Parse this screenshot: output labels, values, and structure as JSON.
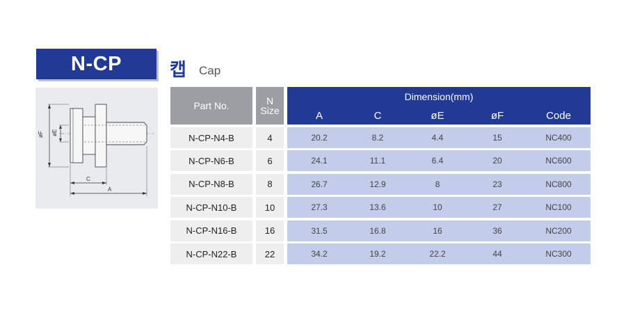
{
  "header": {
    "model": "N-CP",
    "korean_name": "캡",
    "english_name": "Cap"
  },
  "drawing": {
    "labels": {
      "f": "øF",
      "e": "øE",
      "c": "C",
      "a": "A"
    }
  },
  "table": {
    "part_header": "Part No.",
    "size_header_line1": "N",
    "size_header_line2": "Size",
    "dimension_header": "Dimension(mm)",
    "columns": [
      "A",
      "C",
      "øE",
      "øF",
      "Code"
    ],
    "rows": [
      {
        "part": "N-CP-N4-B",
        "size": "4",
        "a": "20.2",
        "c": "8.2",
        "e": "4.4",
        "f": "15",
        "code": "NC400"
      },
      {
        "part": "N-CP-N6-B",
        "size": "6",
        "a": "24.1",
        "c": "11.1",
        "e": "6.4",
        "f": "20",
        "code": "NC600"
      },
      {
        "part": "N-CP-N8-B",
        "size": "8",
        "a": "26.7",
        "c": "12.9",
        "e": "8",
        "f": "23",
        "code": "NC800"
      },
      {
        "part": "N-CP-N10-B",
        "size": "10",
        "a": "27.3",
        "c": "13.6",
        "e": "10",
        "f": "27",
        "code": "NC100"
      },
      {
        "part": "N-CP-N16-B",
        "size": "16",
        "a": "31.5",
        "c": "16.8",
        "e": "16",
        "f": "36",
        "code": "NC200"
      },
      {
        "part": "N-CP-N22-B",
        "size": "22",
        "a": "34.2",
        "c": "19.2",
        "e": "22.2",
        "f": "44",
        "code": "NC300"
      }
    ]
  },
  "colors": {
    "brand_blue": "#213a93",
    "header_gray": "#9b9fa3",
    "row_blue": "#c3cce8",
    "row_gray": "#eeeeef"
  }
}
